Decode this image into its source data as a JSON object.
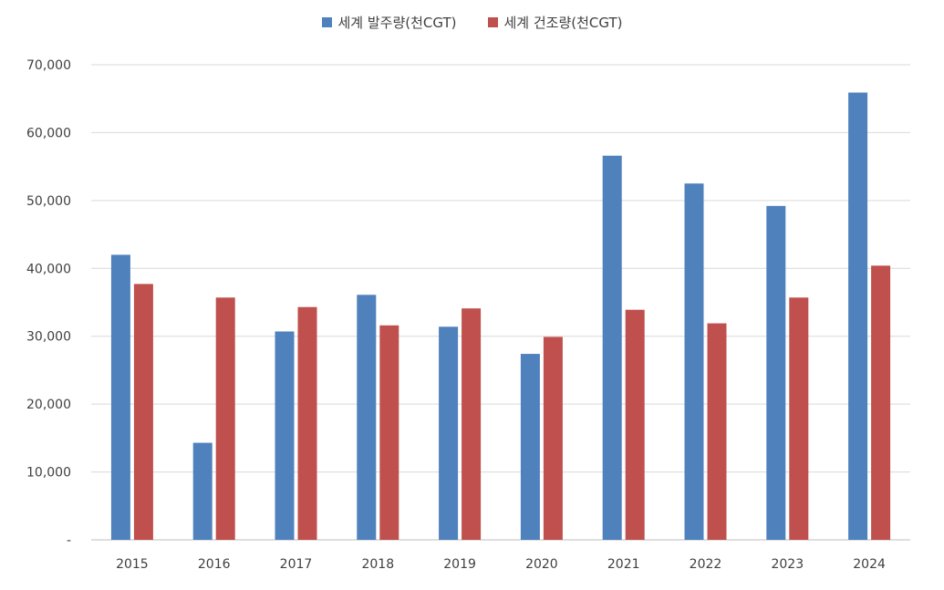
{
  "chart_data": {
    "type": "bar",
    "categories": [
      "2015",
      "2016",
      "2017",
      "2018",
      "2019",
      "2020",
      "2021",
      "2022",
      "2023",
      "2024"
    ],
    "series": [
      {
        "name": "세계 발주량(천CGT)",
        "color": "#4F81BD",
        "values": [
          42000,
          14300,
          30700,
          36100,
          31400,
          27400,
          56600,
          52500,
          49200,
          65900
        ]
      },
      {
        "name": "세계 건조량(천CGT)",
        "color": "#C0504D",
        "values": [
          37700,
          35700,
          34300,
          31600,
          34100,
          29900,
          33900,
          31900,
          35700,
          40400
        ]
      }
    ],
    "y_ticks": [
      "-",
      "10,000",
      "20,000",
      "30,000",
      "40,000",
      "50,000",
      "60,000",
      "70,000"
    ],
    "ylim": [
      0,
      70000
    ],
    "title": "",
    "xlabel": "",
    "ylabel": "",
    "grid": true,
    "legend_position": "top"
  }
}
